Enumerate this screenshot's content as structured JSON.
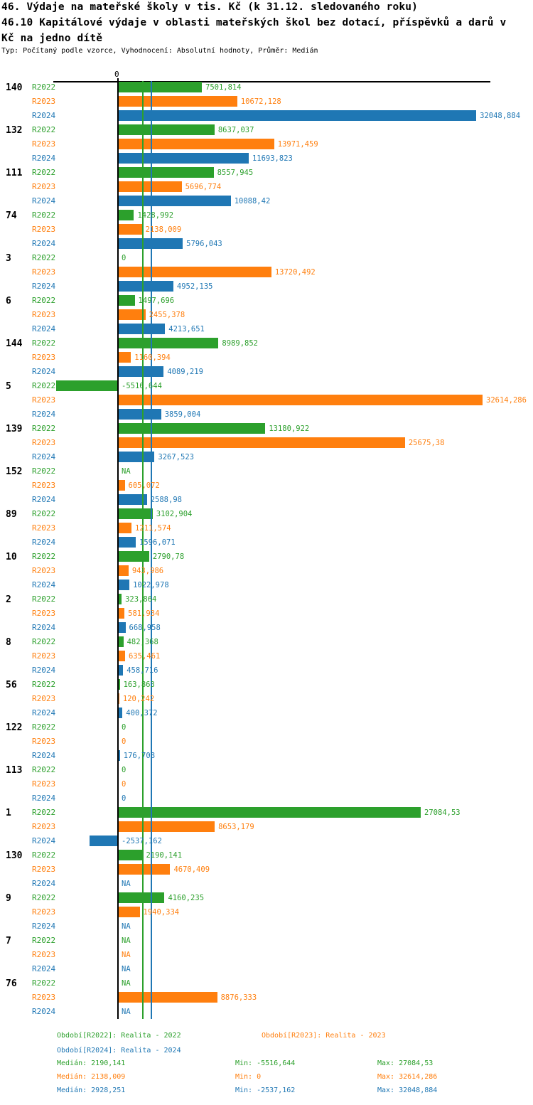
{
  "title": {
    "line1": "46. Výdaje na mateřské školy v tis. Kč (k 31.12. sledovaného roku)",
    "line2": "46.10 Kapitálové výdaje v oblasti mateřských škol bez dotací, příspěvků a darů v",
    "line3": "Kč na jedno dítě"
  },
  "meta": "Typ: Počítaný podle vzorce, Vyhodnocení: Absolutní hodnoty, Průměr: Medián",
  "colors": {
    "R2022": "#2ca02c",
    "R2023": "#ff7f0e",
    "R2024": "#1f77b4",
    "axis": "#000000"
  },
  "chart_data": {
    "type": "bar",
    "orientation": "horizontal",
    "unit": "tis. Kč",
    "x_axis": {
      "zero_label": "0",
      "xlim": [
        -5785,
        33310
      ],
      "grid": false
    },
    "categories": [
      "140",
      "132",
      "111",
      "74",
      "3",
      "6",
      "144",
      "5",
      "139",
      "152",
      "89",
      "10",
      "2",
      "8",
      "56",
      "122",
      "113",
      "1",
      "130",
      "9",
      "7",
      "76"
    ],
    "series": [
      {
        "name": "R2022",
        "values": [
          7501.814,
          8637.037,
          8557.945,
          1428.992,
          0,
          1497.696,
          8989.852,
          -5516.644,
          13180.922,
          null,
          3102.904,
          2790.78,
          323.864,
          482.368,
          163.863,
          0,
          0,
          27084.53,
          2190.141,
          4160.235,
          null,
          null
        ]
      },
      {
        "name": "R2023",
        "values": [
          10672.128,
          13971.459,
          5696.774,
          2138.009,
          13720.492,
          2455.378,
          1160.394,
          32614.286,
          25675.38,
          605.072,
          1211.574,
          943.986,
          581.934,
          635.461,
          120.242,
          0,
          0,
          8653.179,
          4670.409,
          1940.334,
          null,
          8876.333
        ]
      },
      {
        "name": "R2024",
        "values": [
          32048.884,
          11693.823,
          10088.42,
          5796.043,
          4952.135,
          4213.651,
          4089.219,
          3859.004,
          3267.523,
          2588.98,
          1596.071,
          1022.978,
          668.958,
          458.716,
          400.372,
          176.708,
          0,
          -2537.162,
          null,
          null,
          null,
          null
        ]
      }
    ],
    "value_labels": [
      [
        "7501,814",
        "10672,128",
        "32048,884"
      ],
      [
        "8637,037",
        "13971,459",
        "11693,823"
      ],
      [
        "8557,945",
        "5696,774",
        "10088,42"
      ],
      [
        "1428,992",
        "2138,009",
        "5796,043"
      ],
      [
        "0",
        "13720,492",
        "4952,135"
      ],
      [
        "1497,696",
        "2455,378",
        "4213,651"
      ],
      [
        "8989,852",
        "1160,394",
        "4089,219"
      ],
      [
        "-5516,644",
        "32614,286",
        "3859,004"
      ],
      [
        "13180,922",
        "25675,38",
        "3267,523"
      ],
      [
        "NA",
        "605,072",
        "2588,98"
      ],
      [
        "3102,904",
        "1211,574",
        "1596,071"
      ],
      [
        "2790,78",
        "943,986",
        "1022,978"
      ],
      [
        "323,864",
        "581,934",
        "668,958"
      ],
      [
        "482,368",
        "635,461",
        "458,716"
      ],
      [
        "163,863",
        "120,242",
        "400,372"
      ],
      [
        "0",
        "0",
        "176,708"
      ],
      [
        "0",
        "0",
        "0"
      ],
      [
        "27084,53",
        "8653,179",
        "-2537,162"
      ],
      [
        "2190,141",
        "4670,409",
        "NA"
      ],
      [
        "4160,235",
        "1940,334",
        "NA"
      ],
      [
        "NA",
        "NA",
        "NA"
      ],
      [
        "NA",
        "8876,333",
        "NA"
      ]
    ],
    "medians": {
      "R2022": 2190.141,
      "R2023": 2138.009,
      "R2024": 2928.251
    },
    "legend_position": "bottom"
  },
  "legend": {
    "r2022": "Období[R2022]: Realita - 2022",
    "r2023": "Období[R2023]: Realita - 2023",
    "r2024": "Období[R2024]: Realita - 2024"
  },
  "stats": {
    "r2022": {
      "median": "Medián: 2190,141",
      "min": "Min: -5516,644",
      "max": "Max: 27084,53"
    },
    "r2023": {
      "median": "Medián: 2138,009",
      "min": "Min: 0",
      "max": "Max: 32614,286"
    },
    "r2024": {
      "median": "Medián: 2928,251",
      "min": "Min: -2537,162",
      "max": "Max: 32048,884"
    }
  }
}
